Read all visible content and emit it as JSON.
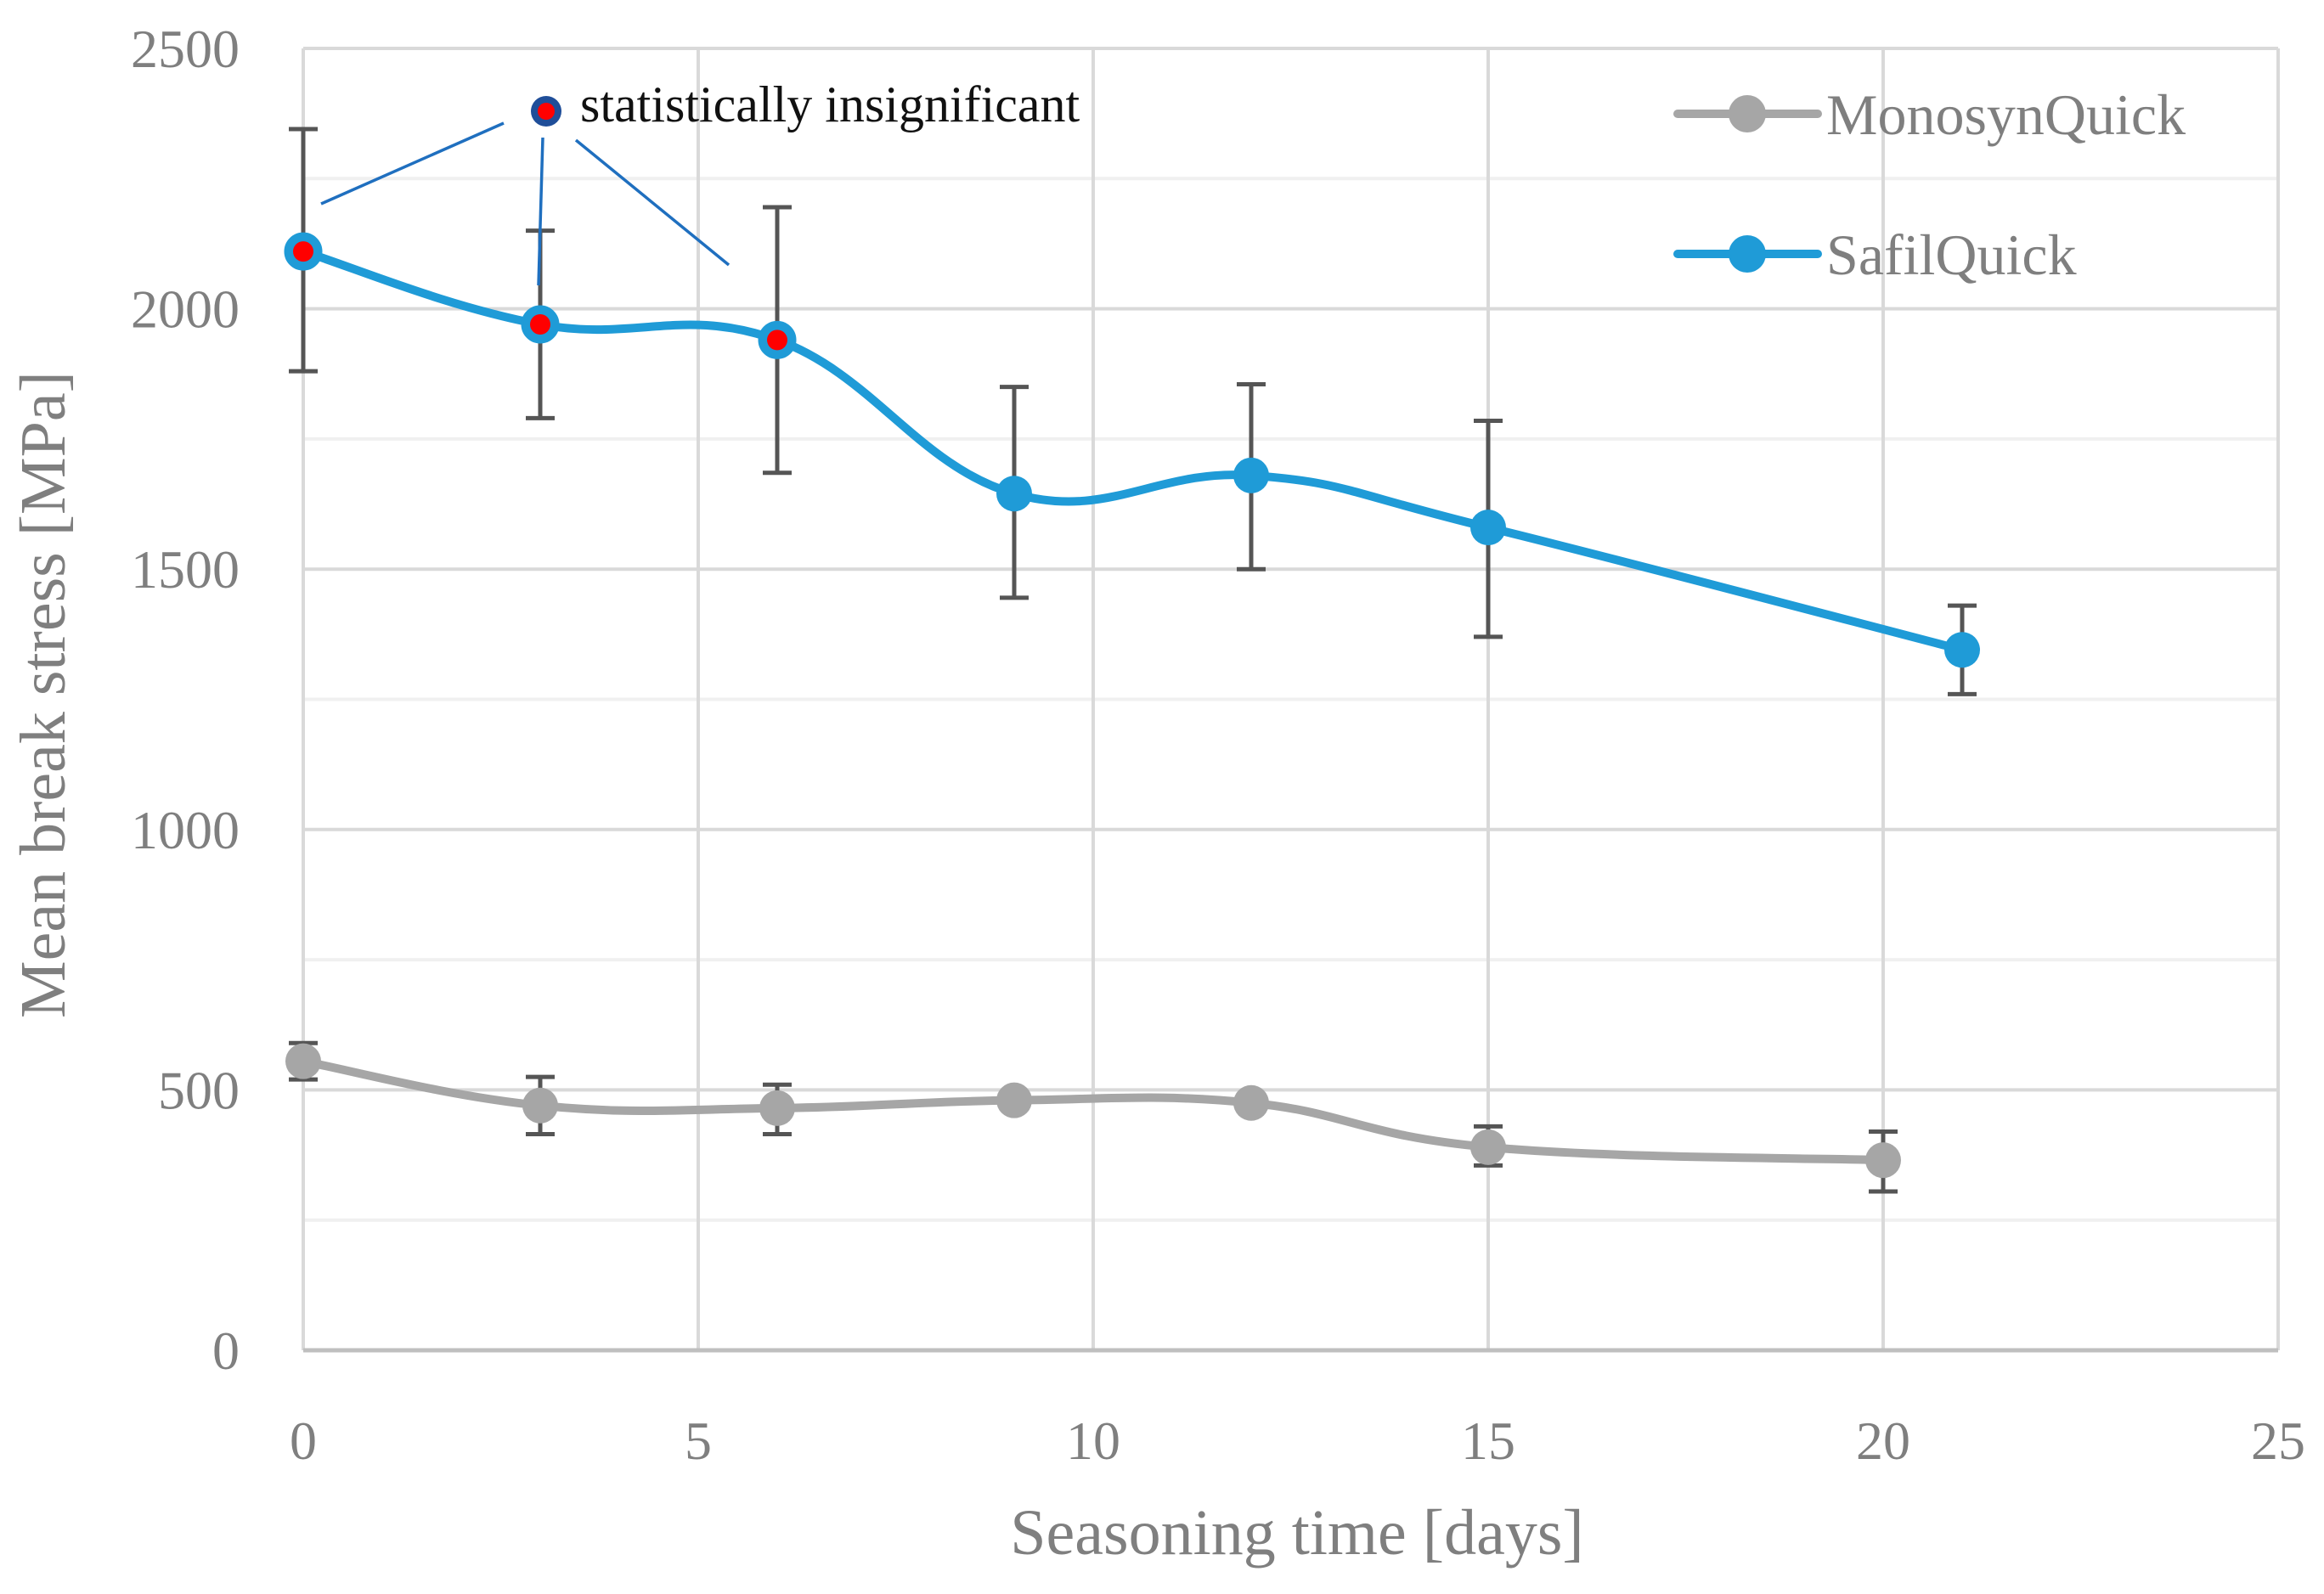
{
  "chart_data": {
    "type": "line",
    "title": "",
    "xlabel": "Seasoning time [days]",
    "ylabel": "Mean break stress [MPa]",
    "xlim": [
      0,
      25
    ],
    "ylim": [
      0,
      2500
    ],
    "x_ticks": [
      0,
      5,
      10,
      15,
      20,
      25
    ],
    "x_tick_labels": [
      "0",
      "5",
      "10",
      "15",
      "20",
      "25"
    ],
    "y_ticks": [
      0,
      500,
      1000,
      1500,
      2000,
      2500
    ],
    "y_tick_labels": [
      "0",
      "500",
      "1000",
      "1500",
      "2000",
      "2500"
    ],
    "y_minor_gridlines": [
      250,
      750,
      1250,
      1750,
      2250
    ],
    "grid": true,
    "smoothed_lines": true,
    "legend_position": "top-right",
    "series": [
      {
        "name": "MonosynQuick",
        "color": "#a6a6a6",
        "x": [
          0,
          3,
          6,
          9,
          12,
          15,
          20
        ],
        "y": [
          555,
          470,
          465,
          480,
          475,
          390,
          365
        ],
        "error_low": [
          520,
          415,
          415,
          null,
          null,
          355,
          305
        ],
        "error_high": [
          590,
          525,
          510,
          null,
          null,
          430,
          420
        ]
      },
      {
        "name": "SafilQuick",
        "color": "#1f9bd7",
        "x": [
          0,
          3,
          6,
          9,
          12,
          15,
          21
        ],
        "y": [
          2110,
          1970,
          1940,
          1645,
          1680,
          1580,
          1345
        ],
        "error_low": [
          1880,
          1790,
          1685,
          1445,
          1500,
          1370,
          1260
        ],
        "error_high": [
          2345,
          2150,
          2195,
          1850,
          1855,
          1785,
          1430
        ],
        "highlighted_points": [
          0,
          1,
          2
        ]
      }
    ],
    "highlight_color": "#ff0000",
    "annotation": {
      "text": "statistically insignificant",
      "marker_fill": "#ff0000",
      "marker_stroke": "#1f4e99",
      "leader_color": "#1f6fbf",
      "points_to_x": [
        0,
        3,
        6
      ]
    }
  }
}
